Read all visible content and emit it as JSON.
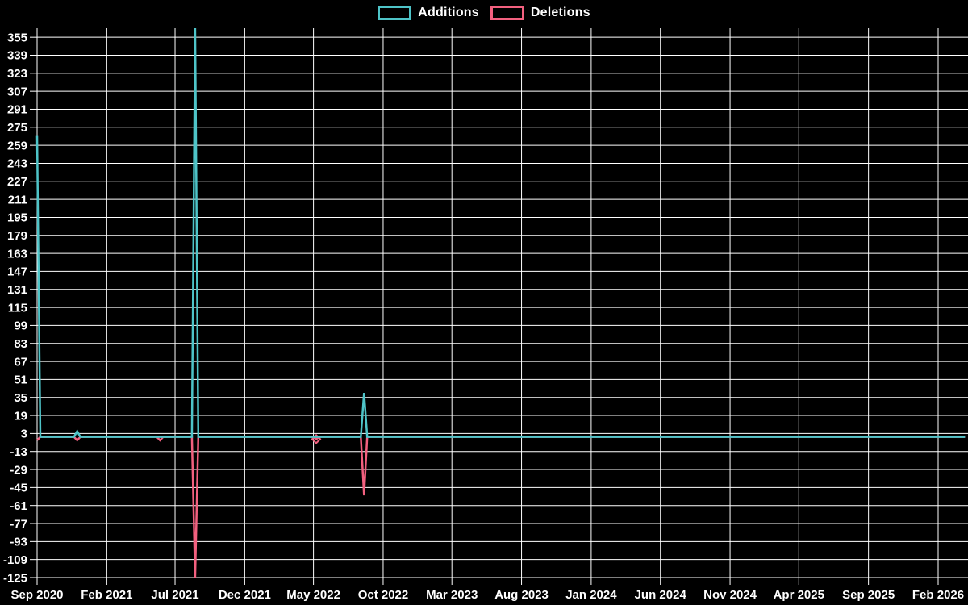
{
  "chart_data": {
    "type": "line",
    "title": "",
    "background": "#000000",
    "grid": true,
    "grid_color": "#ffffff",
    "legend_position": "top-center",
    "legend": [
      {
        "label": "Additions",
        "color": "#4ec4c8"
      },
      {
        "label": "Deletions",
        "color": "#f2607f"
      }
    ],
    "ylim": [
      -125,
      363
    ],
    "y_tick_step": 16,
    "y_ticks": [
      355,
      339,
      323,
      307,
      291,
      275,
      259,
      243,
      227,
      211,
      195,
      179,
      163,
      147,
      131,
      115,
      99,
      83,
      67,
      51,
      35,
      19,
      3,
      -13,
      -29,
      -45,
      -61,
      -77,
      -93,
      -109,
      -125
    ],
    "x_ticks": [
      {
        "label": "Sep 2020",
        "date": "2020-09-01"
      },
      {
        "label": "Feb 2021",
        "date": "2021-02-01"
      },
      {
        "label": "Jul 2021",
        "date": "2021-07-01"
      },
      {
        "label": "Dec 2021",
        "date": "2021-12-01"
      },
      {
        "label": "May 2022",
        "date": "2022-05-01"
      },
      {
        "label": "Oct 2022",
        "date": "2022-10-01"
      },
      {
        "label": "Mar 2023",
        "date": "2023-03-01"
      },
      {
        "label": "Aug 2023",
        "date": "2023-08-01"
      },
      {
        "label": "Jan 2024",
        "date": "2024-01-01"
      },
      {
        "label": "Jun 2024",
        "date": "2024-06-01"
      },
      {
        "label": "Nov 2024",
        "date": "2024-11-01"
      },
      {
        "label": "Apr 2025",
        "date": "2025-04-01"
      },
      {
        "label": "Sep 2025",
        "date": "2025-09-01"
      },
      {
        "label": "Feb 2026",
        "date": "2026-02-01"
      }
    ],
    "x_range": [
      "2020-09-01",
      "2026-04-01"
    ],
    "series": [
      {
        "name": "Additions",
        "color": "#4ec4c8",
        "points": [
          [
            "2020-09-01",
            268
          ],
          [
            "2020-09-08",
            0
          ],
          [
            "2020-11-21",
            0
          ],
          [
            "2020-11-28",
            5
          ],
          [
            "2020-12-05",
            0
          ],
          [
            "2021-08-07",
            0
          ],
          [
            "2021-08-14",
            363
          ],
          [
            "2021-08-21",
            0
          ],
          [
            "2022-08-13",
            0
          ],
          [
            "2022-08-20",
            39
          ],
          [
            "2022-08-27",
            0
          ],
          [
            "2026-04-01",
            0
          ]
        ]
      },
      {
        "name": "Deletions",
        "color": "#f2607f",
        "points": [
          [
            "2020-09-01",
            -3
          ],
          [
            "2020-09-08",
            0
          ],
          [
            "2020-11-21",
            0
          ],
          [
            "2020-11-28",
            -3
          ],
          [
            "2020-12-05",
            0
          ],
          [
            "2021-05-22",
            0
          ],
          [
            "2021-05-29",
            -3
          ],
          [
            "2021-06-05",
            0
          ],
          [
            "2021-08-07",
            0
          ],
          [
            "2021-08-14",
            -125
          ],
          [
            "2021-08-21",
            0
          ],
          [
            "2022-04-30",
            0
          ],
          [
            "2022-05-07",
            -2
          ],
          [
            "2022-05-14",
            0
          ],
          [
            "2022-08-13",
            0
          ],
          [
            "2022-08-20",
            -52
          ],
          [
            "2022-08-27",
            0
          ],
          [
            "2026-04-01",
            0
          ]
        ],
        "marker_points": [
          [
            "2022-05-07",
            -2
          ]
        ]
      }
    ]
  }
}
